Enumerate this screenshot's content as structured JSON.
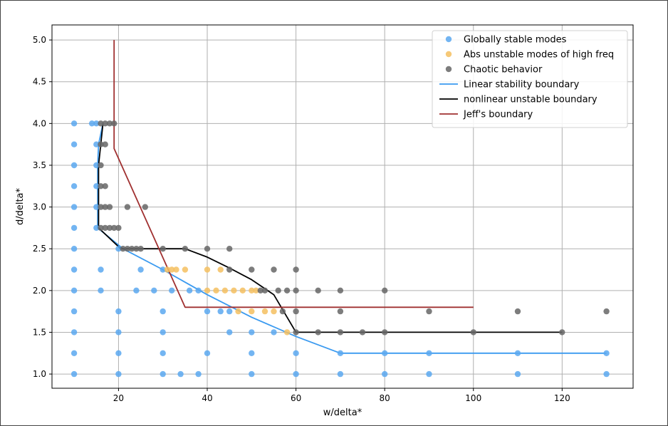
{
  "chart_data": {
    "type": "scatter",
    "title": "",
    "xlabel": "w/delta*",
    "ylabel": "d/delta*",
    "xlim": [
      5,
      136
    ],
    "ylim": [
      0.83,
      5.18
    ],
    "xticks": [
      20,
      40,
      60,
      80,
      100,
      120
    ],
    "yticks": [
      1.0,
      1.5,
      2.0,
      2.5,
      3.0,
      3.5,
      4.0,
      4.5,
      5.0
    ],
    "grid": true,
    "legend_position": "top-right",
    "series": [
      {
        "name": "Globally stable modes",
        "kind": "scatter",
        "color": "#5aa8f0",
        "points": [
          [
            10,
            1.0
          ],
          [
            20,
            1.0
          ],
          [
            30,
            1.0
          ],
          [
            34,
            1.0
          ],
          [
            38,
            1.0
          ],
          [
            50,
            1.0
          ],
          [
            60,
            1.0
          ],
          [
            70,
            1.0
          ],
          [
            80,
            1.0
          ],
          [
            90,
            1.0
          ],
          [
            110,
            1.0
          ],
          [
            130,
            1.0
          ],
          [
            10,
            1.25
          ],
          [
            20,
            1.25
          ],
          [
            30,
            1.25
          ],
          [
            40,
            1.25
          ],
          [
            50,
            1.25
          ],
          [
            60,
            1.25
          ],
          [
            70,
            1.25
          ],
          [
            80,
            1.25
          ],
          [
            90,
            1.25
          ],
          [
            110,
            1.25
          ],
          [
            130,
            1.25
          ],
          [
            10,
            1.5
          ],
          [
            20,
            1.5
          ],
          [
            30,
            1.5
          ],
          [
            45,
            1.5
          ],
          [
            50,
            1.5
          ],
          [
            55,
            1.5
          ],
          [
            10,
            1.75
          ],
          [
            20,
            1.75
          ],
          [
            30,
            1.75
          ],
          [
            40,
            1.75
          ],
          [
            43,
            1.75
          ],
          [
            45,
            1.75
          ],
          [
            10,
            2.0
          ],
          [
            16,
            2.0
          ],
          [
            24,
            2.0
          ],
          [
            28,
            2.0
          ],
          [
            32,
            2.0
          ],
          [
            36,
            2.0
          ],
          [
            38,
            2.0
          ],
          [
            10,
            2.25
          ],
          [
            16,
            2.25
          ],
          [
            25,
            2.25
          ],
          [
            30,
            2.25
          ],
          [
            10,
            2.5
          ],
          [
            20,
            2.5
          ],
          [
            10,
            2.75
          ],
          [
            15,
            2.75
          ],
          [
            10,
            3.0
          ],
          [
            15,
            3.0
          ],
          [
            10,
            3.25
          ],
          [
            15,
            3.25
          ],
          [
            10,
            3.5
          ],
          [
            15,
            3.5
          ],
          [
            10,
            3.75
          ],
          [
            15,
            3.75
          ],
          [
            10,
            4.0
          ],
          [
            14,
            4.0
          ],
          [
            15,
            4.0
          ]
        ]
      },
      {
        "name": "Abs unstable modes of high freq",
        "kind": "scatter",
        "color": "#f5c060",
        "points": [
          [
            31,
            2.25
          ],
          [
            32,
            2.25
          ],
          [
            33,
            2.25
          ],
          [
            35,
            2.25
          ],
          [
            40,
            2.25
          ],
          [
            43,
            2.25
          ],
          [
            40,
            2.0
          ],
          [
            42,
            2.0
          ],
          [
            44,
            2.0
          ],
          [
            46,
            2.0
          ],
          [
            48,
            2.0
          ],
          [
            50,
            2.0
          ],
          [
            51,
            2.0
          ],
          [
            47,
            1.75
          ],
          [
            50,
            1.75
          ],
          [
            53,
            1.75
          ],
          [
            55,
            1.75
          ],
          [
            58,
            1.5
          ]
        ]
      },
      {
        "name": "Chaotic behavior",
        "kind": "scatter",
        "color": "#666666",
        "points": [
          [
            16,
            4.0
          ],
          [
            17,
            4.0
          ],
          [
            18,
            4.0
          ],
          [
            19,
            4.0
          ],
          [
            16,
            3.75
          ],
          [
            17,
            3.75
          ],
          [
            16,
            3.5
          ],
          [
            16,
            3.25
          ],
          [
            17,
            3.25
          ],
          [
            16,
            3.0
          ],
          [
            17,
            3.0
          ],
          [
            18,
            3.0
          ],
          [
            22,
            3.0
          ],
          [
            26,
            3.0
          ],
          [
            16,
            2.75
          ],
          [
            17,
            2.75
          ],
          [
            18,
            2.75
          ],
          [
            19,
            2.75
          ],
          [
            20,
            2.75
          ],
          [
            21,
            2.5
          ],
          [
            22,
            2.5
          ],
          [
            23,
            2.5
          ],
          [
            24,
            2.5
          ],
          [
            25,
            2.5
          ],
          [
            30,
            2.5
          ],
          [
            35,
            2.5
          ],
          [
            40,
            2.5
          ],
          [
            45,
            2.5
          ],
          [
            45,
            2.25
          ],
          [
            50,
            2.25
          ],
          [
            55,
            2.25
          ],
          [
            60,
            2.25
          ],
          [
            52,
            2.0
          ],
          [
            53,
            2.0
          ],
          [
            56,
            2.0
          ],
          [
            58,
            2.0
          ],
          [
            60,
            2.0
          ],
          [
            65,
            2.0
          ],
          [
            70,
            2.0
          ],
          [
            80,
            2.0
          ],
          [
            57,
            1.75
          ],
          [
            60,
            1.75
          ],
          [
            70,
            1.75
          ],
          [
            90,
            1.75
          ],
          [
            110,
            1.75
          ],
          [
            130,
            1.75
          ],
          [
            60,
            1.5
          ],
          [
            65,
            1.5
          ],
          [
            70,
            1.5
          ],
          [
            75,
            1.5
          ],
          [
            80,
            1.5
          ],
          [
            100,
            1.5
          ],
          [
            120,
            1.5
          ]
        ]
      },
      {
        "name": "Linear stability boundary",
        "kind": "line",
        "color": "#3a9af0",
        "points": [
          [
            16.5,
            4.0
          ],
          [
            15.5,
            3.75
          ],
          [
            15.3,
            3.5
          ],
          [
            15.3,
            3.0
          ],
          [
            15.3,
            2.75
          ],
          [
            21,
            2.5
          ],
          [
            30,
            2.25
          ],
          [
            40,
            1.95
          ],
          [
            50,
            1.68
          ],
          [
            60,
            1.45
          ],
          [
            70,
            1.25
          ],
          [
            80,
            1.25
          ],
          [
            130,
            1.25
          ]
        ]
      },
      {
        "name": "nonlinear unstable boundary",
        "kind": "line",
        "color": "#000000",
        "points": [
          [
            16.5,
            4.0
          ],
          [
            16,
            3.75
          ],
          [
            15.5,
            3.5
          ],
          [
            15.5,
            3.0
          ],
          [
            15.5,
            2.75
          ],
          [
            20.5,
            2.5
          ],
          [
            35,
            2.5
          ],
          [
            40,
            2.4
          ],
          [
            45,
            2.27
          ],
          [
            50,
            2.13
          ],
          [
            55,
            1.95
          ],
          [
            60,
            1.5
          ],
          [
            70,
            1.5
          ],
          [
            120,
            1.5
          ]
        ]
      },
      {
        "name": "Jeff's boundary",
        "kind": "line",
        "color": "#a03030",
        "points": [
          [
            19,
            5.0
          ],
          [
            19,
            3.7
          ],
          [
            35,
            1.8
          ],
          [
            100,
            1.8
          ]
        ]
      }
    ]
  }
}
